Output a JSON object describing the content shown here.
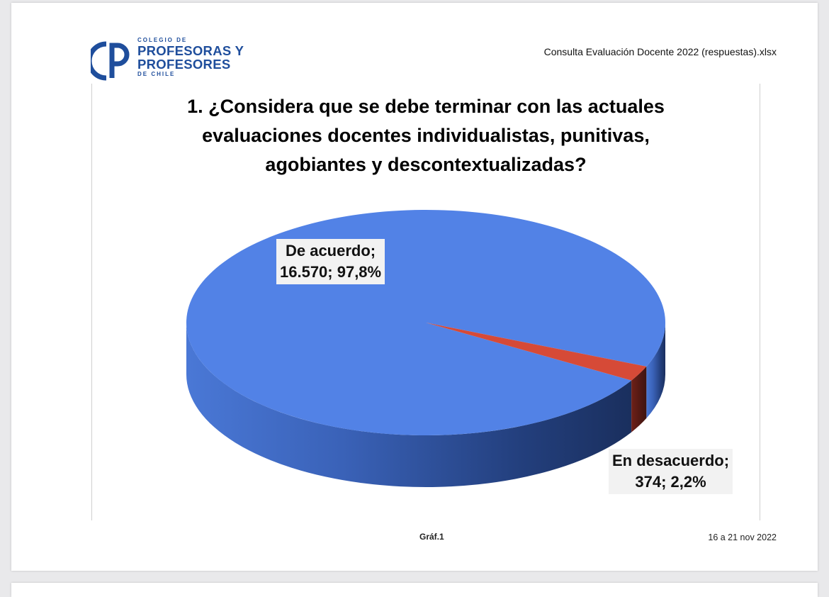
{
  "header": {
    "org_line1": "COLEGIO DE",
    "org_line2": "PROFESORAS Y",
    "org_line3": "PROFESORES",
    "org_line4": "DE CHILE",
    "file_name": "Consulta Evaluación Docente 2022 (respuestas).xlsx"
  },
  "chart_data": {
    "type": "pie",
    "title_lines": [
      "1. ¿Considera que se debe terminar con las actuales",
      "evaluaciones docentes individualistas, punitivas,",
      "agobiantes y descontextualizadas?"
    ],
    "slices": [
      {
        "label": "De acuerdo",
        "value": 16570,
        "percent": 97.8,
        "color": "#5282e6",
        "label_line1": "De acuerdo;",
        "label_line2": "16.570; 97,8%"
      },
      {
        "label": "En desacuerdo",
        "value": 374,
        "percent": 2.2,
        "color": "#d64a37",
        "label_line1": "En desacuerdo;",
        "label_line2": "374; 2,2%"
      }
    ],
    "style": "3d"
  },
  "footer": {
    "caption": "Gráf.1",
    "date_range": "16 a 21 nov 2022"
  },
  "colors": {
    "brand": "#1f4e9c",
    "agree": "#5282e6",
    "disagree": "#d64a37",
    "label_bg": "#f2f2f2"
  }
}
